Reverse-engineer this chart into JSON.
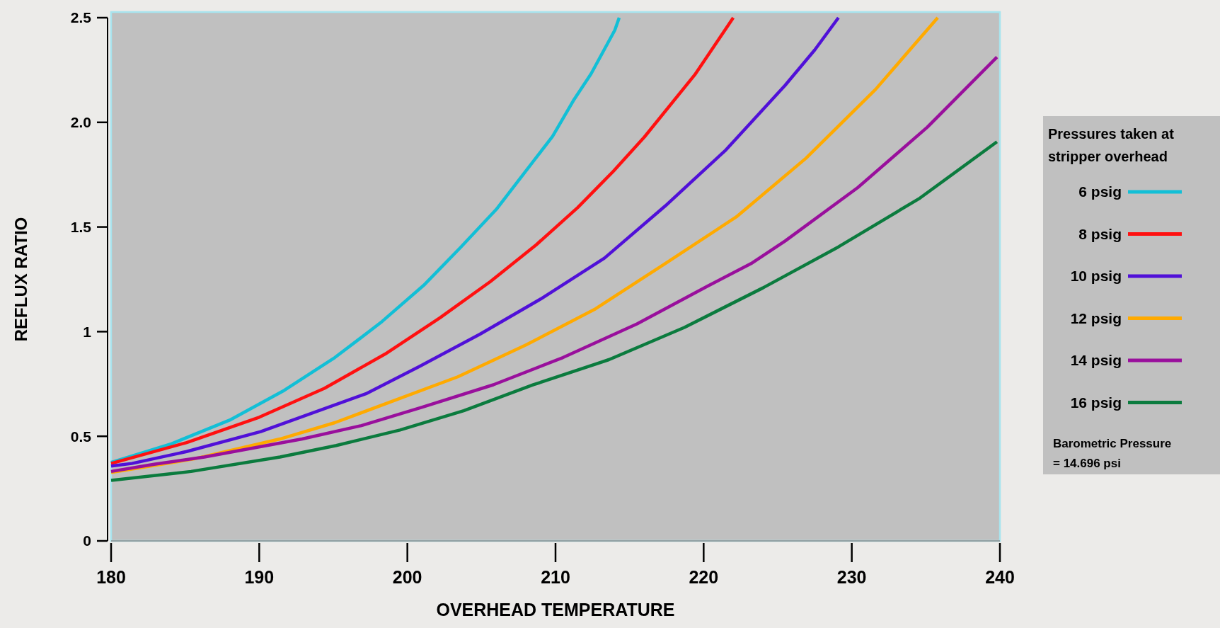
{
  "chart_data": {
    "type": "line",
    "xlabel": "OVERHEAD TEMPERATURE",
    "ylabel": "REFLUX RATIO",
    "legend_title": "Pressures taken at\nstripper overhead",
    "legend": "right",
    "grid": false,
    "xlim": [
      180,
      240
    ],
    "xticks": [
      180,
      190,
      200,
      210,
      220,
      230,
      240
    ],
    "ylim": [
      0,
      2.5
    ],
    "yticks": [
      0,
      {
        "value": 0.5,
        "label": "0.5"
      },
      1,
      {
        "value": 1.5,
        "label": "1.5"
      },
      {
        "value": 2,
        "label": "2.0"
      },
      {
        "value": 2.5,
        "label": "2.5"
      }
    ],
    "series": [
      {
        "name": "6 psig",
        "color": "#12bfd6",
        "x": [
          180,
          184.1,
          188,
          191.7,
          195.1,
          196.7,
          198.3,
          201.1,
          203.6,
          206,
          209.8,
          211.2,
          212.4,
          214,
          214.3
        ],
        "values": [
          0.375,
          0.465,
          0.577,
          0.72,
          0.876,
          0.962,
          1.049,
          1.221,
          1.403,
          1.584,
          1.933,
          2.103,
          2.232,
          2.44,
          2.5
        ]
      },
      {
        "name": "8 psig",
        "color": "#ff1010",
        "x": [
          180,
          185.1,
          190,
          194.4,
          198.5,
          202.2,
          205.6,
          208.7,
          211.5,
          213.9,
          216,
          219.4,
          222
        ],
        "values": [
          0.37,
          0.47,
          0.591,
          0.729,
          0.893,
          1.066,
          1.239,
          1.415,
          1.593,
          1.766,
          1.93,
          2.227,
          2.5
        ]
      },
      {
        "name": "10 psig",
        "color": "#5010d8",
        "x": [
          180,
          181.4,
          185.1,
          190.1,
          197.2,
          200.8,
          204.9,
          209,
          213.3,
          217.4,
          221.5,
          225.5,
          227.5,
          229.1
        ],
        "values": [
          0.358,
          0.37,
          0.427,
          0.522,
          0.703,
          0.833,
          0.988,
          1.156,
          1.351,
          1.6,
          1.868,
          2.177,
          2.346,
          2.5
        ]
      },
      {
        "name": "12 psig",
        "color": "#ffaa00",
        "x": [
          180,
          185.6,
          191.4,
          195.1,
          203.4,
          208,
          212.7,
          217.4,
          222.2,
          226.9,
          231.6,
          235.8
        ],
        "values": [
          0.327,
          0.392,
          0.487,
          0.565,
          0.784,
          0.936,
          1.109,
          1.325,
          1.548,
          1.828,
          2.157,
          2.5
        ]
      },
      {
        "name": "14 psig",
        "color": "#990f9c",
        "x": [
          180,
          182.9,
          186.3,
          192.9,
          196.9,
          201,
          205.8,
          210.5,
          215.5,
          220.3,
          223.2,
          225.5,
          230.4,
          235.1,
          239.8
        ],
        "values": [
          0.332,
          0.366,
          0.401,
          0.487,
          0.551,
          0.639,
          0.746,
          0.876,
          1.037,
          1.219,
          1.325,
          1.433,
          1.688,
          1.977,
          2.312
        ]
      },
      {
        "name": "16 psig",
        "color": "#0b7b3e",
        "x": [
          180,
          185.4,
          191.4,
          195.2,
          199.5,
          203.8,
          208.5,
          213.6,
          218.7,
          224,
          229.1,
          234.6,
          239.8
        ],
        "values": [
          0.289,
          0.332,
          0.401,
          0.456,
          0.53,
          0.622,
          0.746,
          0.866,
          1.02,
          1.209,
          1.405,
          1.638,
          1.907
        ]
      }
    ],
    "annotations": [
      "Barometric Pressure\n= 14.696 psi"
    ]
  }
}
